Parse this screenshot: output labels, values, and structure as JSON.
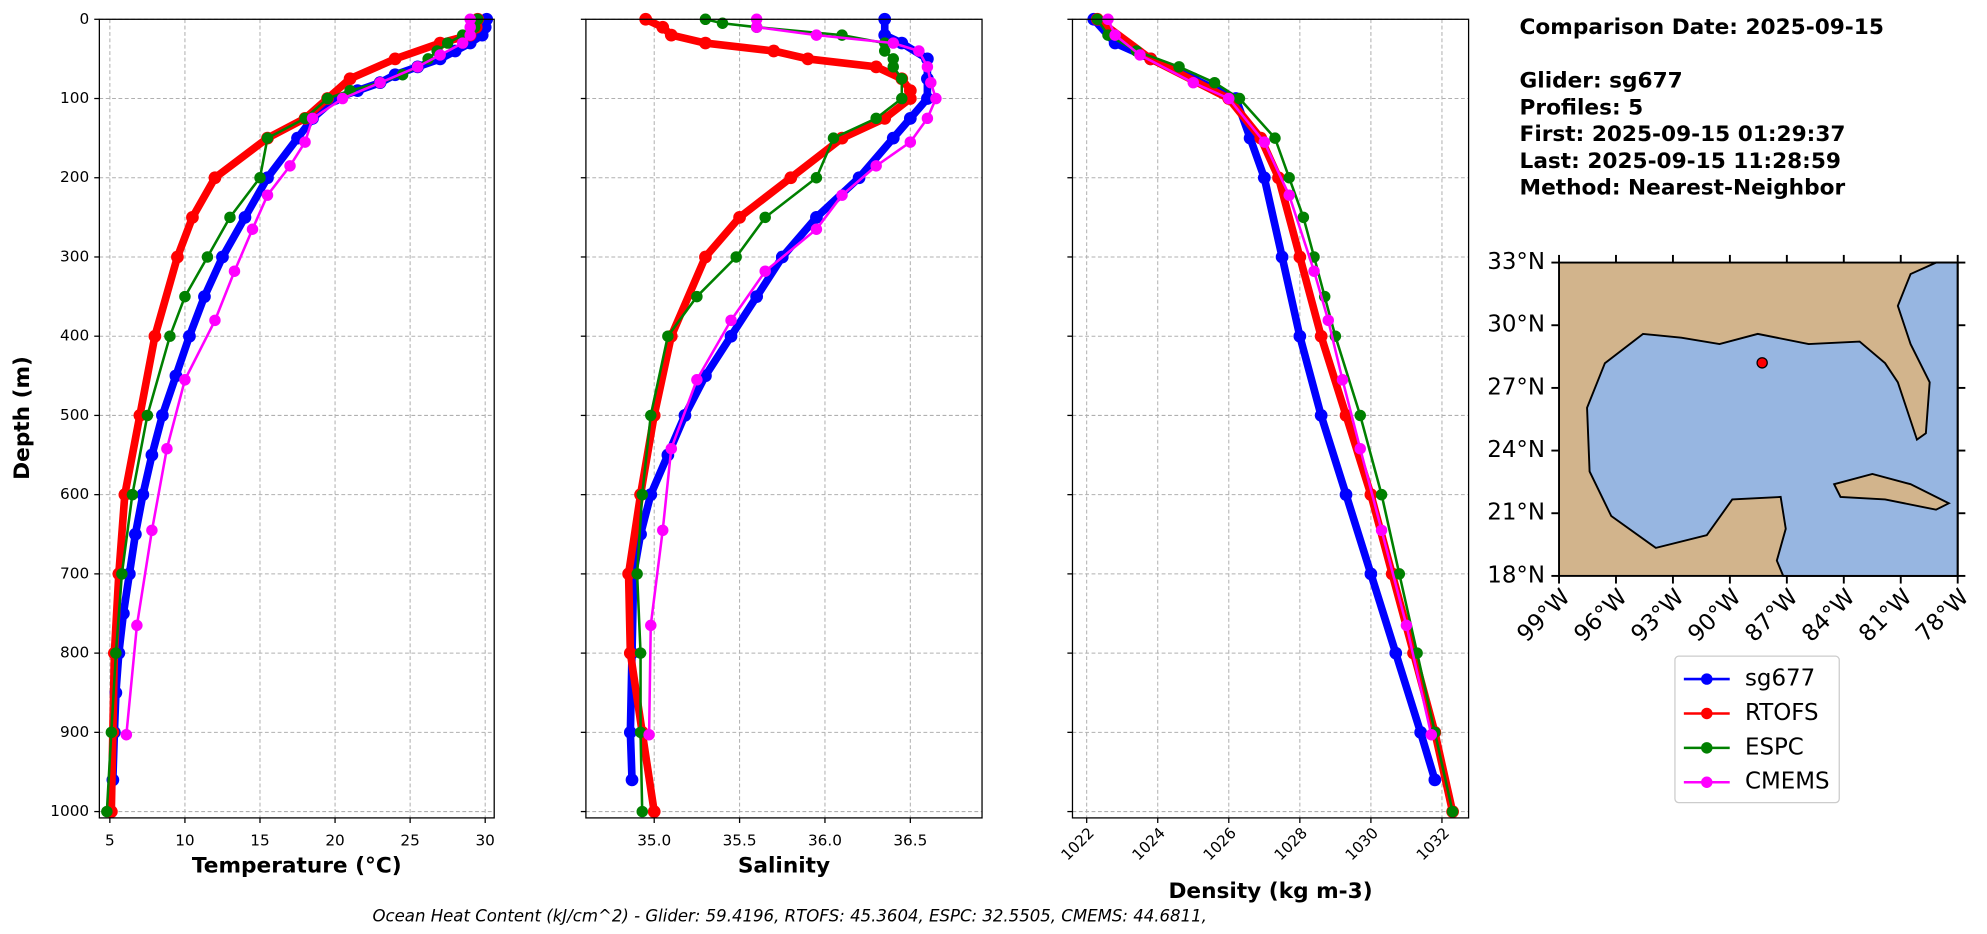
{
  "chart_data": [
    {
      "type": "line",
      "xlabel": "Temperature (°C)",
      "ylabel": "Depth (m)",
      "xlim": [
        4.3,
        30.6
      ],
      "xticks": [
        5,
        10,
        15,
        20,
        25,
        30
      ],
      "ylim": [
        1008,
        0
      ],
      "yticks": [
        0,
        100,
        200,
        300,
        400,
        500,
        600,
        700,
        800,
        900,
        1000
      ],
      "grid": true,
      "series": [
        {
          "name": "sg677",
          "color": "#0000ff",
          "y": [
            0,
            10,
            20,
            30,
            40,
            50,
            60,
            70,
            80,
            90,
            100,
            125,
            150,
            200,
            250,
            300,
            350,
            400,
            450,
            500,
            550,
            600,
            650,
            700,
            750,
            800,
            850,
            900,
            960
          ],
          "x": [
            30.1,
            30,
            29.8,
            29,
            28,
            27,
            25.5,
            24,
            23,
            21.5,
            20,
            18.5,
            17.5,
            15.5,
            14,
            12.5,
            11.3,
            10.3,
            9.4,
            8.5,
            7.8,
            7.2,
            6.7,
            6.3,
            5.9,
            5.6,
            5.4,
            5.3,
            5.2
          ]
        },
        {
          "name": "RTOFS",
          "color": "#ff0000",
          "y": [
            0,
            10,
            20,
            30,
            50,
            75,
            100,
            125,
            150,
            200,
            250,
            300,
            400,
            500,
            600,
            700,
            800,
            900,
            1000
          ],
          "x": [
            29.5,
            29.4,
            29,
            27,
            24,
            21,
            19.5,
            18,
            15.5,
            12,
            10.5,
            9.5,
            8,
            7,
            6,
            5.6,
            5.3,
            5.2,
            5.1
          ]
        },
        {
          "name": "ESPC",
          "color": "#008000",
          "y": [
            0,
            10,
            20,
            30,
            40,
            50,
            60,
            70,
            80,
            90,
            100,
            125,
            150,
            200,
            250,
            300,
            350,
            400,
            500,
            600,
            700,
            800,
            900,
            1000
          ],
          "x": [
            29.5,
            29.3,
            28.5,
            27.5,
            26.8,
            26.2,
            25.5,
            24.5,
            23,
            21,
            19.5,
            18,
            15.5,
            15,
            13,
            11.5,
            10,
            9,
            7.5,
            6.5,
            5.8,
            5.4,
            5.1,
            4.8
          ]
        },
        {
          "name": "CMEMS",
          "color": "#ff00ff",
          "y": [
            0,
            10,
            20,
            30,
            45,
            60,
            80,
            100,
            125,
            155,
            185,
            222,
            265,
            318,
            380,
            455,
            542,
            645,
            765,
            903
          ],
          "x": [
            29,
            29,
            29,
            28.5,
            27,
            25.5,
            23,
            20.5,
            18.5,
            18,
            17,
            15.5,
            14.5,
            13.3,
            12,
            10,
            8.8,
            7.8,
            6.8,
            6.1
          ]
        }
      ]
    },
    {
      "type": "line",
      "xlabel": "Salinity",
      "xlim": [
        34.6,
        36.92
      ],
      "xticks": [
        {
          "value": 35,
          "label": "35.0"
        },
        35.5,
        {
          "value": 36,
          "label": "36.0"
        },
        36.5
      ],
      "ylim": [
        1008,
        0
      ],
      "yticks": [
        0,
        100,
        200,
        300,
        400,
        500,
        600,
        700,
        800,
        900,
        1000
      ],
      "grid": true,
      "series": [
        {
          "name": "sg677",
          "color": "#0000ff",
          "y": [
            0,
            20,
            30,
            50,
            75,
            100,
            125,
            150,
            200,
            250,
            300,
            350,
            400,
            450,
            500,
            550,
            600,
            650,
            700,
            800,
            900,
            960
          ],
          "x": [
            36.35,
            36.35,
            36.45,
            36.6,
            36.6,
            36.6,
            36.5,
            36.4,
            36.2,
            35.95,
            35.75,
            35.6,
            35.45,
            35.3,
            35.18,
            35.08,
            34.98,
            34.92,
            34.88,
            34.87,
            34.86,
            34.87
          ]
        },
        {
          "name": "RTOFS",
          "color": "#ff0000",
          "y": [
            0,
            10,
            20,
            30,
            40,
            50,
            60,
            75,
            90,
            100,
            125,
            150,
            200,
            250,
            300,
            400,
            500,
            600,
            700,
            800,
            900,
            1000
          ],
          "x": [
            34.95,
            35.05,
            35.1,
            35.3,
            35.7,
            35.9,
            36.3,
            36.45,
            36.5,
            36.5,
            36.35,
            36.1,
            35.8,
            35.5,
            35.3,
            35.1,
            35,
            34.92,
            34.85,
            34.86,
            34.93,
            35
          ]
        },
        {
          "name": "ESPC",
          "color": "#008000",
          "y": [
            0,
            5,
            10,
            20,
            30,
            40,
            50,
            60,
            75,
            100,
            125,
            150,
            200,
            250,
            300,
            350,
            400,
            500,
            600,
            700,
            800,
            900,
            1000
          ],
          "x": [
            35.3,
            35.4,
            35.6,
            36.1,
            36.35,
            36.35,
            36.4,
            36.4,
            36.45,
            36.45,
            36.3,
            36.05,
            35.95,
            35.65,
            35.48,
            35.25,
            35.08,
            34.98,
            34.93,
            34.9,
            34.92,
            34.92,
            34.93
          ]
        },
        {
          "name": "CMEMS",
          "color": "#ff00ff",
          "y": [
            0,
            10,
            20,
            30,
            40,
            60,
            80,
            100,
            125,
            155,
            185,
            222,
            265,
            318,
            380,
            455,
            542,
            645,
            765,
            903
          ],
          "x": [
            35.6,
            35.6,
            35.95,
            36.4,
            36.55,
            36.6,
            36.62,
            36.65,
            36.6,
            36.5,
            36.3,
            36.1,
            35.95,
            35.65,
            35.45,
            35.25,
            35.1,
            35.05,
            34.98,
            34.97
          ]
        }
      ]
    },
    {
      "type": "line",
      "xlabel": "Density (kg m-3)",
      "xtick_rotation": 45,
      "xlim": [
        1021.6,
        1032.75
      ],
      "xticks": [
        1022,
        1024,
        1026,
        1028,
        1030,
        1032
      ],
      "ylim": [
        1008,
        0
      ],
      "yticks": [
        0,
        100,
        200,
        300,
        400,
        500,
        600,
        700,
        800,
        900,
        1000
      ],
      "grid": true,
      "series": [
        {
          "name": "sg677",
          "color": "#0000ff",
          "y": [
            0,
            30,
            50,
            75,
            100,
            150,
            200,
            300,
            400,
            500,
            600,
            700,
            800,
            900,
            960
          ],
          "x": [
            1022.2,
            1022.8,
            1023.8,
            1025,
            1026.2,
            1026.6,
            1027,
            1027.5,
            1028,
            1028.6,
            1029.3,
            1030,
            1030.7,
            1031.4,
            1031.8
          ]
        },
        {
          "name": "RTOFS",
          "color": "#ff0000",
          "y": [
            0,
            50,
            100,
            150,
            200,
            300,
            400,
            500,
            600,
            700,
            800,
            900,
            1000
          ],
          "x": [
            1022.3,
            1023.8,
            1026,
            1026.9,
            1027.4,
            1028,
            1028.6,
            1029.3,
            1030,
            1030.6,
            1031.2,
            1031.8,
            1032.3
          ]
        },
        {
          "name": "ESPC",
          "color": "#008000",
          "y": [
            0,
            20,
            40,
            60,
            80,
            100,
            150,
            200,
            250,
            300,
            350,
            400,
            500,
            600,
            700,
            800,
            900,
            1000
          ],
          "x": [
            1022.3,
            1022.6,
            1023.4,
            1024.6,
            1025.6,
            1026.3,
            1027.3,
            1027.7,
            1028.1,
            1028.4,
            1028.7,
            1029,
            1029.7,
            1030.3,
            1030.8,
            1031.3,
            1031.8,
            1032.3
          ]
        },
        {
          "name": "CMEMS",
          "color": "#ff00ff",
          "y": [
            0,
            20,
            45,
            80,
            100,
            155,
            222,
            318,
            380,
            455,
            542,
            645,
            765,
            903
          ],
          "x": [
            1022.6,
            1022.8,
            1023.5,
            1025,
            1026,
            1027,
            1027.7,
            1028.4,
            1028.8,
            1029.2,
            1029.7,
            1030.3,
            1031,
            1031.7
          ]
        }
      ]
    }
  ],
  "info": {
    "lines": [
      "Comparison Date: 2025-09-15",
      "Glider: sg677",
      "Profiles: 5",
      "First: 2025-09-15 01:29:37",
      "Last: 2025-09-15 11:28:59",
      "Method: Nearest-Neighbor"
    ]
  },
  "map": {
    "lonlim": [
      -99,
      -78
    ],
    "latlim": [
      18,
      33
    ],
    "lat_ticks": [
      {
        "value": 18,
        "label": "18°N"
      },
      {
        "value": 21,
        "label": "21°N"
      },
      {
        "value": 24,
        "label": "24°N"
      },
      {
        "value": 27,
        "label": "27°N"
      },
      {
        "value": 30,
        "label": "30°N"
      },
      {
        "value": 33,
        "label": "33°N"
      }
    ],
    "lon_ticks": [
      {
        "value": -99,
        "label": "99°W"
      },
      {
        "value": -96,
        "label": "96°W"
      },
      {
        "value": -93,
        "label": "93°W"
      },
      {
        "value": -90,
        "label": "90°W"
      },
      {
        "value": -87,
        "label": "87°W"
      },
      {
        "value": -84,
        "label": "84°W"
      },
      {
        "value": -81,
        "label": "81°W"
      },
      {
        "value": -78,
        "label": "78°W"
      }
    ],
    "point": {
      "lon": -88.3,
      "lat": 28.2
    }
  },
  "footer": "Ocean Heat Content (kJ/cm^2) - Glider: 59.4196,  RTOFS: 45.3604,  ESPC: 32.5505,  CMEMS: 44.6811,"
}
